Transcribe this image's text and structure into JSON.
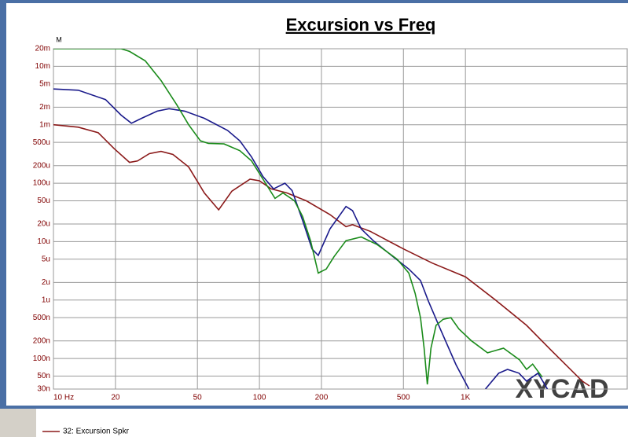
{
  "chart_data": {
    "type": "line",
    "title": "Excursion vs Freq",
    "y_label": "M",
    "watermark": "XYCAD",
    "log_x": true,
    "log_y": true,
    "grid": true,
    "xlim": [
      10,
      6100
    ],
    "ylim": [
      3e-08,
      0.02
    ],
    "xticks": [
      {
        "value": 10,
        "label": "10 Hz"
      },
      20,
      50,
      100,
      200,
      500,
      {
        "value": 1000,
        "label": "1K"
      }
    ],
    "yticks": [
      {
        "value": 0.02,
        "label": "20m"
      },
      {
        "value": 0.01,
        "label": "10m"
      },
      {
        "value": 0.005,
        "label": "5m"
      },
      {
        "value": 0.002,
        "label": "2m"
      },
      {
        "value": 0.001,
        "label": "1m"
      },
      {
        "value": 0.0005,
        "label": "500u"
      },
      {
        "value": 0.0002,
        "label": "200u"
      },
      {
        "value": 0.0001,
        "label": "100u"
      },
      {
        "value": 5e-05,
        "label": "50u"
      },
      {
        "value": 2e-05,
        "label": "20u"
      },
      {
        "value": 1e-05,
        "label": "10u"
      },
      {
        "value": 5e-06,
        "label": "5u"
      },
      {
        "value": 2e-06,
        "label": "2u"
      },
      {
        "value": 1e-06,
        "label": "1u"
      },
      {
        "value": 5e-07,
        "label": "500n"
      },
      {
        "value": 2e-07,
        "label": "200n"
      },
      {
        "value": 1e-07,
        "label": "100n"
      },
      {
        "value": 5e-08,
        "label": "50n"
      },
      {
        "value": 3e-08,
        "label": "30n"
      }
    ],
    "series": [
      {
        "name": "32: Excursion Spkr",
        "color": "#8b1a1a",
        "x": [
          10,
          13.2,
          16.5,
          19.7,
          23.4,
          25.6,
          29.2,
          33.3,
          38,
          45.3,
          54,
          63.4,
          73.5,
          90,
          100,
          114,
          136,
          169,
          220,
          263,
          283,
          345,
          500,
          690,
          1000,
          1400,
          1980,
          2600,
          3690,
          4000
        ],
        "values": [
          0.001,
          0.00091,
          0.00073,
          0.00039,
          0.000227,
          0.00024,
          0.00032,
          0.00035,
          0.00031,
          0.00019,
          6.8e-05,
          3.5e-05,
          7.3e-05,
          0.000117,
          0.00011,
          8e-05,
          6.8e-05,
          5e-05,
          2.9e-05,
          1.8e-05,
          1.95e-05,
          1.5e-05,
          7.5e-06,
          4.3e-06,
          2.5e-06,
          1e-06,
          3.7e-07,
          1.4e-07,
          4.1e-08,
          3.4e-08
        ]
      },
      {
        "color": "#1a1a8b",
        "x": [
          10,
          13.2,
          17.9,
          21.3,
          23.9,
          26.8,
          31.9,
          36.4,
          43.4,
          54,
          70,
          80.3,
          91.6,
          104,
          117,
          133,
          144,
          162,
          180,
          193,
          220,
          263,
          283,
          312,
          357,
          446,
          531,
          605,
          660,
          755,
          900,
          1040,
          1200,
          1250,
          1450,
          1600,
          1820,
          1980,
          2250,
          2500
        ],
        "values": [
          0.0041,
          0.0039,
          0.0027,
          0.00146,
          0.00106,
          0.00129,
          0.00171,
          0.00188,
          0.00171,
          0.00129,
          0.0008,
          0.00053,
          0.00028,
          0.00013,
          8e-05,
          0.0001,
          7.5e-05,
          2.3e-05,
          7.5e-06,
          5.8e-06,
          1.65e-05,
          4e-05,
          3.4e-05,
          1.65e-05,
          1.04e-05,
          5.5e-06,
          3.4e-06,
          2.16e-06,
          9.7e-07,
          3.2e-07,
          7.8e-08,
          3e-08,
          null,
          3e-08,
          5.6e-08,
          6.5e-08,
          5.6e-08,
          4.1e-08,
          5.6e-08,
          3e-08
        ]
      },
      {
        "color": "#1a8b1a",
        "x": [
          10,
          21.3,
          23.4,
          27.9,
          33.3,
          39.7,
          45.3,
          51.7,
          56.5,
          67.3,
          80.3,
          91.6,
          104,
          119,
          130,
          148,
          162,
          177,
          193,
          211,
          230,
          263,
          312,
          373,
          466,
          531,
          570,
          605,
          630,
          653,
          680,
          720,
          780,
          850,
          930,
          1070,
          1280,
          1530,
          1830,
          1980,
          2120,
          2360
        ],
        "values": [
          0.02,
          0.02,
          0.018,
          0.0124,
          0.0057,
          0.0022,
          0.001,
          0.00053,
          0.00048,
          0.00047,
          0.00036,
          0.00024,
          0.000117,
          5.5e-05,
          6.8e-05,
          5e-05,
          2.7e-05,
          1.04e-05,
          2.9e-06,
          3.4e-06,
          5.5e-06,
          1.04e-05,
          1.2e-05,
          8.9e-06,
          5e-06,
          2.9e-06,
          1.3e-06,
          5e-07,
          1.5e-07,
          3.6e-08,
          1.5e-07,
          3.7e-07,
          4.7e-07,
          5e-07,
          3.2e-07,
          2e-07,
          1.25e-07,
          1.5e-07,
          9.5e-08,
          6.5e-08,
          8e-08,
          4.8e-08
        ]
      }
    ]
  }
}
